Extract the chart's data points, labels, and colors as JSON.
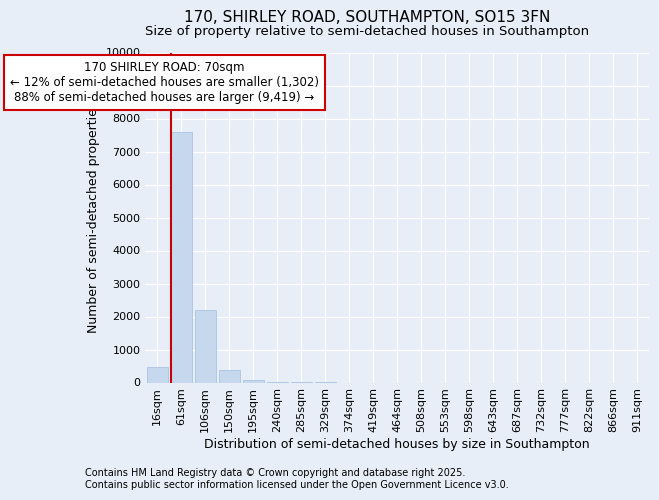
{
  "title_line1": "170, SHIRLEY ROAD, SOUTHAMPTON, SO15 3FN",
  "title_line2": "Size of property relative to semi-detached houses in Southampton",
  "xlabel": "Distribution of semi-detached houses by size in Southampton",
  "ylabel": "Number of semi-detached properties",
  "categories": [
    "16sqm",
    "61sqm",
    "106sqm",
    "150sqm",
    "195sqm",
    "240sqm",
    "285sqm",
    "329sqm",
    "374sqm",
    "419sqm",
    "464sqm",
    "508sqm",
    "553sqm",
    "598sqm",
    "643sqm",
    "687sqm",
    "732sqm",
    "777sqm",
    "822sqm",
    "866sqm",
    "911sqm"
  ],
  "values": [
    480,
    7600,
    2200,
    380,
    90,
    10,
    3,
    1,
    0,
    0,
    0,
    0,
    0,
    0,
    0,
    0,
    0,
    0,
    0,
    0,
    0
  ],
  "bar_color": "#c5d8ee",
  "bar_edge_color": "#a0bedd",
  "background_color": "#e8eef7",
  "grid_color": "#ffffff",
  "annotation_box_color": "#ffffff",
  "annotation_box_edge": "#cc0000",
  "vline_color": "#cc0000",
  "vline_x_index": 1,
  "annotation_title": "170 SHIRLEY ROAD: 70sqm",
  "annotation_line1": "← 12% of semi-detached houses are smaller (1,302)",
  "annotation_line2": "88% of semi-detached houses are larger (9,419) →",
  "ylim": [
    0,
    10000
  ],
  "yticks": [
    0,
    1000,
    2000,
    3000,
    4000,
    5000,
    6000,
    7000,
    8000,
    9000,
    10000
  ],
  "footer_line1": "Contains HM Land Registry data © Crown copyright and database right 2025.",
  "footer_line2": "Contains public sector information licensed under the Open Government Licence v3.0.",
  "title_fontsize": 11,
  "subtitle_fontsize": 9.5,
  "axis_label_fontsize": 9,
  "tick_fontsize": 8,
  "annotation_fontsize": 8.5,
  "footer_fontsize": 7
}
